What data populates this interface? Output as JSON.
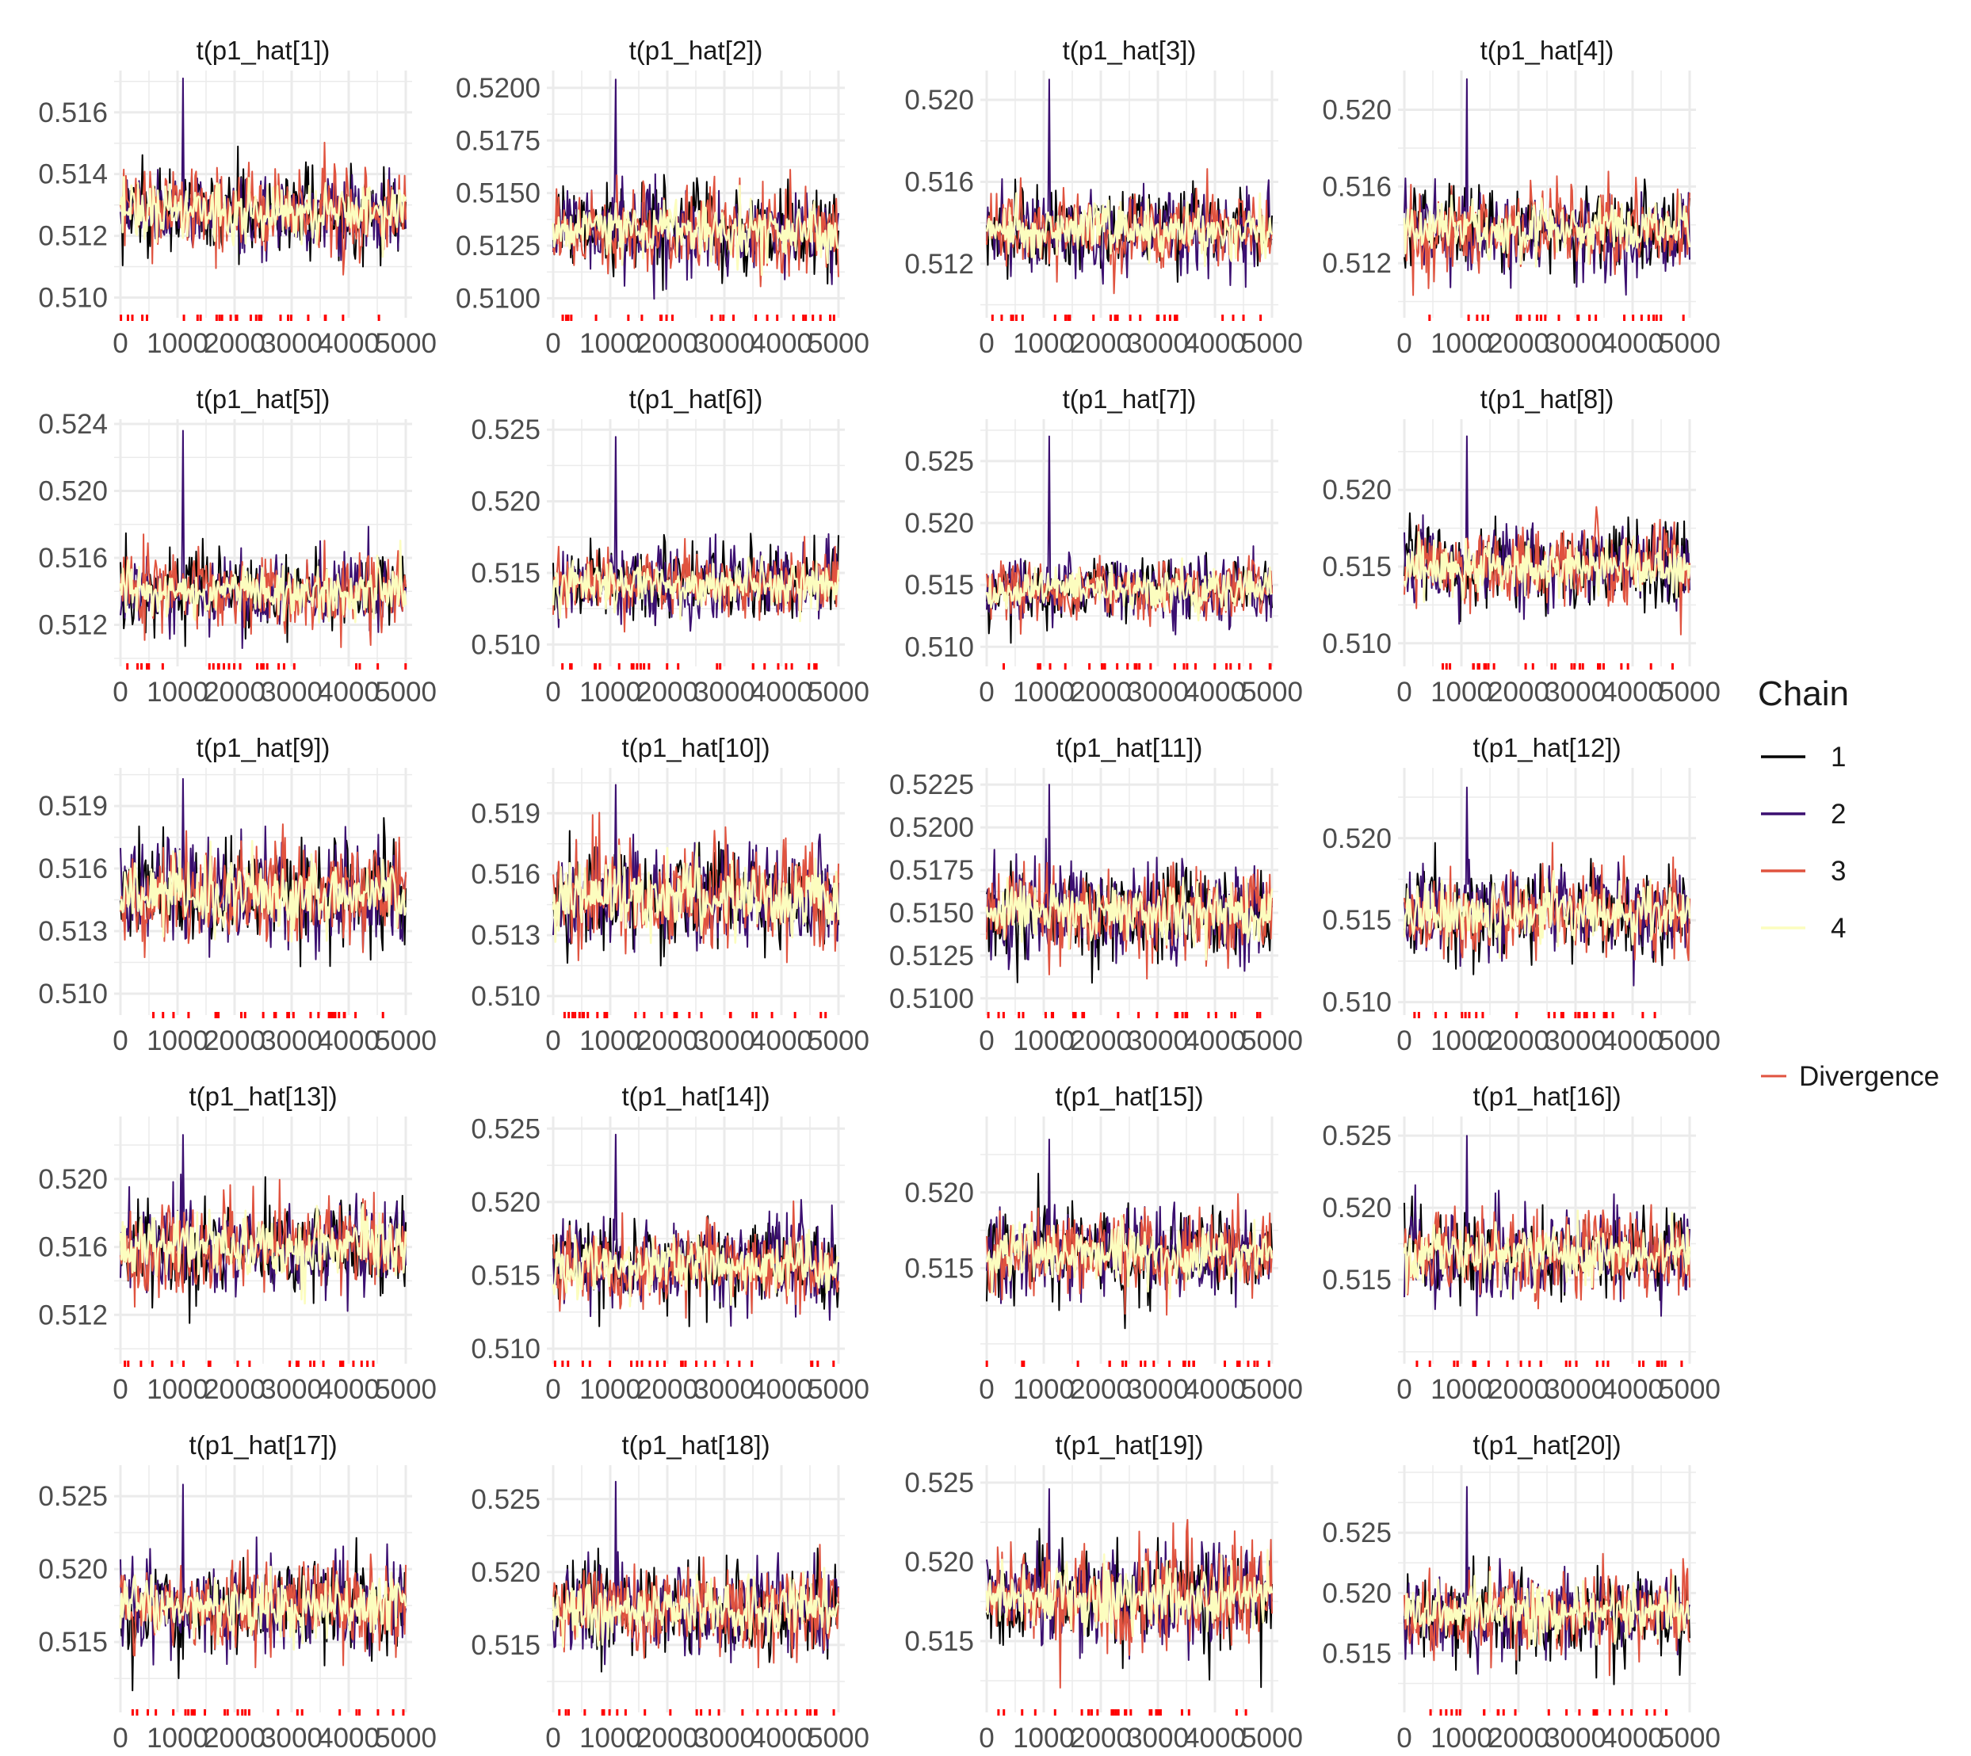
{
  "colors": {
    "chain_1": "#000000",
    "chain_2": "#3b0f70",
    "chain_3": "#e0533f",
    "chain_4": "#fcfdbf",
    "divergence": "#ff0000",
    "grid": "#ebebeb"
  },
  "legend": {
    "title": "Chain",
    "items": [
      {
        "label": "1",
        "color": "#000000"
      },
      {
        "label": "2",
        "color": "#3b0f70"
      },
      {
        "label": "3",
        "color": "#e0533f"
      },
      {
        "label": "4",
        "color": "#fcfdbf"
      }
    ],
    "divergence_label": "Divergence",
    "position": "right"
  },
  "chart_data": {
    "type": "line",
    "facet": "trace plots, 5 rows x 4 columns",
    "x_ticks": [
      "0",
      "1000",
      "2000",
      "3000",
      "4000",
      "5000"
    ],
    "xlim": [
      0,
      5000
    ],
    "grid": true,
    "panels": [
      {
        "title": "t(p1_hat[1])",
        "ylim": [
          0.5095,
          0.5172
        ],
        "yticks": [
          "0.510",
          "0.512",
          "0.514",
          "0.516"
        ],
        "series_center": 0.5128,
        "series_spread": 0.0011,
        "max_spike": 0.5171
      },
      {
        "title": "t(p1_hat[2])",
        "ylim": [
          0.5093,
          0.5206
        ],
        "yticks": [
          "0.5100",
          "0.5125",
          "0.5150",
          "0.5175",
          "0.5200"
        ],
        "series_center": 0.5132,
        "series_spread": 0.0016,
        "max_spike": 0.5204
      },
      {
        "title": "t(p1_hat[3])",
        "ylim": [
          0.5096,
          0.5212
        ],
        "yticks": [
          "0.512",
          "0.516",
          "0.520"
        ],
        "series_center": 0.5136,
        "series_spread": 0.0016,
        "max_spike": 0.521
      },
      {
        "title": "t(p1_hat[4])",
        "ylim": [
          0.5094,
          0.5218
        ],
        "yticks": [
          "0.512",
          "0.516",
          "0.520"
        ],
        "series_center": 0.5138,
        "series_spread": 0.0017,
        "max_spike": 0.5216
      },
      {
        "title": "t(p1_hat[5])",
        "ylim": [
          0.5098,
          0.524
        ],
        "yticks": [
          "0.512",
          "0.516",
          "0.520",
          "0.524"
        ],
        "series_center": 0.514,
        "series_spread": 0.0018,
        "max_spike": 0.5236
      },
      {
        "title": "t(p1_hat[6])",
        "ylim": [
          0.5088,
          0.5254
        ],
        "yticks": [
          "0.510",
          "0.515",
          "0.520",
          "0.525"
        ],
        "series_center": 0.5142,
        "series_spread": 0.0019,
        "max_spike": 0.5245
      },
      {
        "title": "t(p1_hat[7])",
        "ylim": [
          0.5088,
          0.528
        ],
        "yticks": [
          "0.510",
          "0.515",
          "0.520",
          "0.525"
        ],
        "series_center": 0.5146,
        "series_spread": 0.002,
        "max_spike": 0.527
      },
      {
        "title": "t(p1_hat[8])",
        "ylim": [
          0.5088,
          0.5243
        ],
        "yticks": [
          "0.510",
          "0.515",
          "0.520"
        ],
        "series_center": 0.515,
        "series_spread": 0.0021,
        "max_spike": 0.5235
      },
      {
        "title": "t(p1_hat[9])",
        "ylim": [
          0.5092,
          0.5206
        ],
        "yticks": [
          "0.510",
          "0.513",
          "0.516",
          "0.519"
        ],
        "series_center": 0.5148,
        "series_spread": 0.002,
        "max_spike": 0.5203
      },
      {
        "title": "t(p1_hat[10])",
        "ylim": [
          0.5093,
          0.521
        ],
        "yticks": [
          "0.510",
          "0.513",
          "0.516",
          "0.519"
        ],
        "series_center": 0.5149,
        "series_spread": 0.0021,
        "max_spike": 0.5204
      },
      {
        "title": "t(p1_hat[11])",
        "ylim": [
          0.5093,
          0.5232
        ],
        "yticks": [
          "0.5100",
          "0.5125",
          "0.5150",
          "0.5175",
          "0.5200",
          "0.5225"
        ],
        "series_center": 0.515,
        "series_spread": 0.0021,
        "max_spike": 0.5225
      },
      {
        "title": "t(p1_hat[12])",
        "ylim": [
          0.5095,
          0.524
        ],
        "yticks": [
          "0.510",
          "0.515",
          "0.520"
        ],
        "series_center": 0.5155,
        "series_spread": 0.0022,
        "max_spike": 0.5231
      },
      {
        "title": "t(p1_hat[13])",
        "ylim": [
          0.5094,
          0.5234
        ],
        "yticks": [
          "0.512",
          "0.516",
          "0.520"
        ],
        "series_center": 0.516,
        "series_spread": 0.0022,
        "max_spike": 0.5226
      },
      {
        "title": "t(p1_hat[14])",
        "ylim": [
          0.5093,
          0.5255
        ],
        "yticks": [
          "0.510",
          "0.515",
          "0.520",
          "0.525"
        ],
        "series_center": 0.5158,
        "series_spread": 0.0023,
        "max_spike": 0.5246
      },
      {
        "title": "t(p1_hat[15])",
        "ylim": [
          0.509,
          0.5247
        ],
        "yticks": [
          "0.515",
          "0.520"
        ],
        "series_center": 0.516,
        "series_spread": 0.0023,
        "max_spike": 0.5235
      },
      {
        "title": "t(p1_hat[16])",
        "ylim": [
          0.5095,
          0.526
        ],
        "yticks": [
          "0.515",
          "0.520",
          "0.525"
        ],
        "series_center": 0.5168,
        "series_spread": 0.0024,
        "max_spike": 0.525
      },
      {
        "title": "t(p1_hat[17])",
        "ylim": [
          0.5105,
          0.5268
        ],
        "yticks": [
          "0.515",
          "0.520",
          "0.525"
        ],
        "series_center": 0.5174,
        "series_spread": 0.0025,
        "max_spike": 0.5258
      },
      {
        "title": "t(p1_hat[18])",
        "ylim": [
          0.5107,
          0.527
        ],
        "yticks": [
          "0.515",
          "0.520",
          "0.525"
        ],
        "series_center": 0.5175,
        "series_spread": 0.0025,
        "max_spike": 0.5262
      },
      {
        "title": "t(p1_hat[19])",
        "ylim": [
          0.5108,
          0.5258
        ],
        "yticks": [
          "0.515",
          "0.520",
          "0.525"
        ],
        "series_center": 0.5178,
        "series_spread": 0.0025,
        "max_spike": 0.5246
      },
      {
        "title": "t(p1_hat[20])",
        "ylim": [
          0.5105,
          0.5302
        ],
        "yticks": [
          "0.515",
          "0.520",
          "0.525"
        ],
        "series_center": 0.5183,
        "series_spread": 0.0026,
        "max_spike": 0.5288
      }
    ]
  }
}
